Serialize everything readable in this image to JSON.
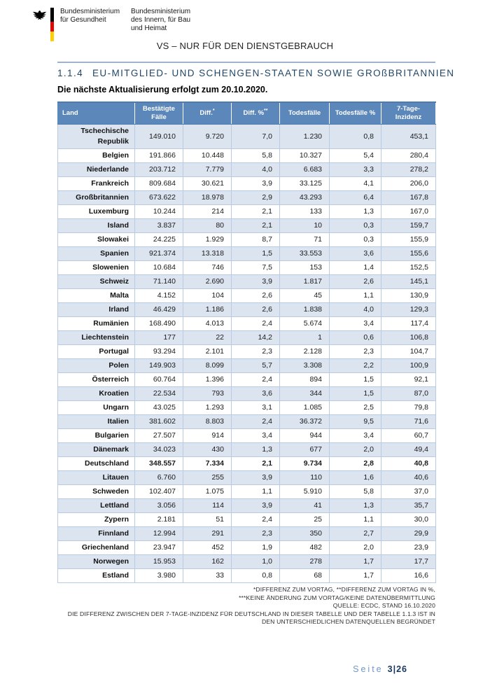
{
  "header": {
    "ministry_health": {
      "line1": "Bundesministerium",
      "line2": "für Gesundheit"
    },
    "ministry_interior": {
      "line1": "Bundesministerium",
      "line2": "des Innern, für Bau",
      "line3": "und Heimat"
    },
    "classification": "VS – NUR FÜR DEN DIENSTGEBRAUCH"
  },
  "section": {
    "number": "1.1.4",
    "title": "EU-MITGLIED- UND SCHENGEN-STAATEN SOWIE GROßBRITANNIEN",
    "update_note": "Die nächste Aktualisierung erfolgt zum 20.10.2020."
  },
  "table": {
    "columns": [
      {
        "label": "Land",
        "sup": ""
      },
      {
        "label": "Bestätigte Fälle",
        "sup": ""
      },
      {
        "label": "Diff.",
        "sup": "*"
      },
      {
        "label": "Diff. %",
        "sup": "**"
      },
      {
        "label": "Todesfälle",
        "sup": ""
      },
      {
        "label": "Todesfälle %",
        "sup": ""
      },
      {
        "label": "7-Tage-Inzidenz",
        "sup": ""
      }
    ],
    "rows": [
      {
        "country": "Tschechische Republik",
        "values": [
          "149.010",
          "9.720",
          "7,0",
          "1.230",
          "0,8",
          "453,1"
        ]
      },
      {
        "country": "Belgien",
        "values": [
          "191.866",
          "10.448",
          "5,8",
          "10.327",
          "5,4",
          "280,4"
        ]
      },
      {
        "country": "Niederlande",
        "values": [
          "203.712",
          "7.779",
          "4,0",
          "6.683",
          "3,3",
          "278,2"
        ]
      },
      {
        "country": "Frankreich",
        "values": [
          "809.684",
          "30.621",
          "3,9",
          "33.125",
          "4,1",
          "206,0"
        ]
      },
      {
        "country": "Großbritannien",
        "values": [
          "673.622",
          "18.978",
          "2,9",
          "43.293",
          "6,4",
          "167,8"
        ]
      },
      {
        "country": "Luxemburg",
        "values": [
          "10.244",
          "214",
          "2,1",
          "133",
          "1,3",
          "167,0"
        ]
      },
      {
        "country": "Island",
        "values": [
          "3.837",
          "80",
          "2,1",
          "10",
          "0,3",
          "159,7"
        ]
      },
      {
        "country": "Slowakei",
        "values": [
          "24.225",
          "1.929",
          "8,7",
          "71",
          "0,3",
          "155,9"
        ]
      },
      {
        "country": "Spanien",
        "values": [
          "921.374",
          "13.318",
          "1,5",
          "33.553",
          "3,6",
          "155,6"
        ]
      },
      {
        "country": "Slowenien",
        "values": [
          "10.684",
          "746",
          "7,5",
          "153",
          "1,4",
          "152,5"
        ]
      },
      {
        "country": "Schweiz",
        "values": [
          "71.140",
          "2.690",
          "3,9",
          "1.817",
          "2,6",
          "145,1"
        ]
      },
      {
        "country": "Malta",
        "values": [
          "4.152",
          "104",
          "2,6",
          "45",
          "1,1",
          "130,9"
        ]
      },
      {
        "country": "Irland",
        "values": [
          "46.429",
          "1.186",
          "2,6",
          "1.838",
          "4,0",
          "129,3"
        ]
      },
      {
        "country": "Rumänien",
        "values": [
          "168.490",
          "4.013",
          "2,4",
          "5.674",
          "3,4",
          "117,4"
        ]
      },
      {
        "country": "Liechtenstein",
        "values": [
          "177",
          "22",
          "14,2",
          "1",
          "0,6",
          "106,8"
        ]
      },
      {
        "country": "Portugal",
        "values": [
          "93.294",
          "2.101",
          "2,3",
          "2.128",
          "2,3",
          "104,7"
        ]
      },
      {
        "country": "Polen",
        "values": [
          "149.903",
          "8.099",
          "5,7",
          "3.308",
          "2,2",
          "100,9"
        ]
      },
      {
        "country": "Österreich",
        "values": [
          "60.764",
          "1.396",
          "2,4",
          "894",
          "1,5",
          "92,1"
        ]
      },
      {
        "country": "Kroatien",
        "values": [
          "22.534",
          "793",
          "3,6",
          "344",
          "1,5",
          "87,0"
        ]
      },
      {
        "country": "Ungarn",
        "values": [
          "43.025",
          "1.293",
          "3,1",
          "1.085",
          "2,5",
          "79,8"
        ]
      },
      {
        "country": "Italien",
        "values": [
          "381.602",
          "8.803",
          "2,4",
          "36.372",
          "9,5",
          "71,6"
        ]
      },
      {
        "country": "Bulgarien",
        "values": [
          "27.507",
          "914",
          "3,4",
          "944",
          "3,4",
          "60,7"
        ]
      },
      {
        "country": "Dänemark",
        "values": [
          "34.023",
          "430",
          "1,3",
          "677",
          "2,0",
          "49,4"
        ]
      },
      {
        "country": "Deutschland",
        "bold": true,
        "values": [
          "348.557",
          "7.334",
          "2,1",
          "9.734",
          "2,8",
          "40,8"
        ]
      },
      {
        "country": "Litauen",
        "values": [
          "6.760",
          "255",
          "3,9",
          "110",
          "1,6",
          "40,6"
        ]
      },
      {
        "country": "Schweden",
        "values": [
          "102.407",
          "1.075",
          "1,1",
          "5.910",
          "5,8",
          "37,0"
        ]
      },
      {
        "country": "Lettland",
        "values": [
          "3.056",
          "114",
          "3,9",
          "41",
          "1,3",
          "35,7"
        ]
      },
      {
        "country": "Zypern",
        "values": [
          "2.181",
          "51",
          "2,4",
          "25",
          "1,1",
          "30,0"
        ]
      },
      {
        "country": "Finnland",
        "values": [
          "12.994",
          "291",
          "2,3",
          "350",
          "2,7",
          "29,9"
        ]
      },
      {
        "country": "Griechenland",
        "values": [
          "23.947",
          "452",
          "1,9",
          "482",
          "2,0",
          "23,9"
        ]
      },
      {
        "country": "Norwegen",
        "values": [
          "15.953",
          "162",
          "1,0",
          "278",
          "1,7",
          "17,7"
        ]
      },
      {
        "country": "Estland",
        "values": [
          "3.980",
          "33",
          "0,8",
          "68",
          "1,7",
          "16,6"
        ]
      }
    ]
  },
  "footnotes": [
    "*DIFFERENZ ZUM VORTAG, **DIFFERENZ ZUM VORTAG IN %,",
    "***KEINE ÄNDERUNG ZUM VORTAG/KEINE DATENÜBERMITTLUNG",
    "QUELLE: ECDC, STAND 16.10.2020",
    "DIE DIFFERENZ ZWISCHEN DER 7-TAGE-INZIDENZ FÜR DEUTSCHLAND IN DIESER TABELLE UND DER TABELLE 1.1.3 IST IN",
    "DEN UNTERSCHIEDLICHEN DATENQUELLEN BEGRÜNDET"
  ],
  "footer": {
    "page_label": "Seite",
    "page_number": "3|26"
  },
  "colors": {
    "table_header_blue": "#5b87bb",
    "row_shading_blue": "#dce4f0",
    "grid_blue": "#b9cbe3",
    "section_title_blue": "#1f4668",
    "divider_blue": "#9fb2ca",
    "footer_label_blue": "#7197c7",
    "footer_number_navy": "#17365d",
    "flag_black": "#000000",
    "flag_red": "#e10600",
    "flag_gold": "#ffce00"
  }
}
